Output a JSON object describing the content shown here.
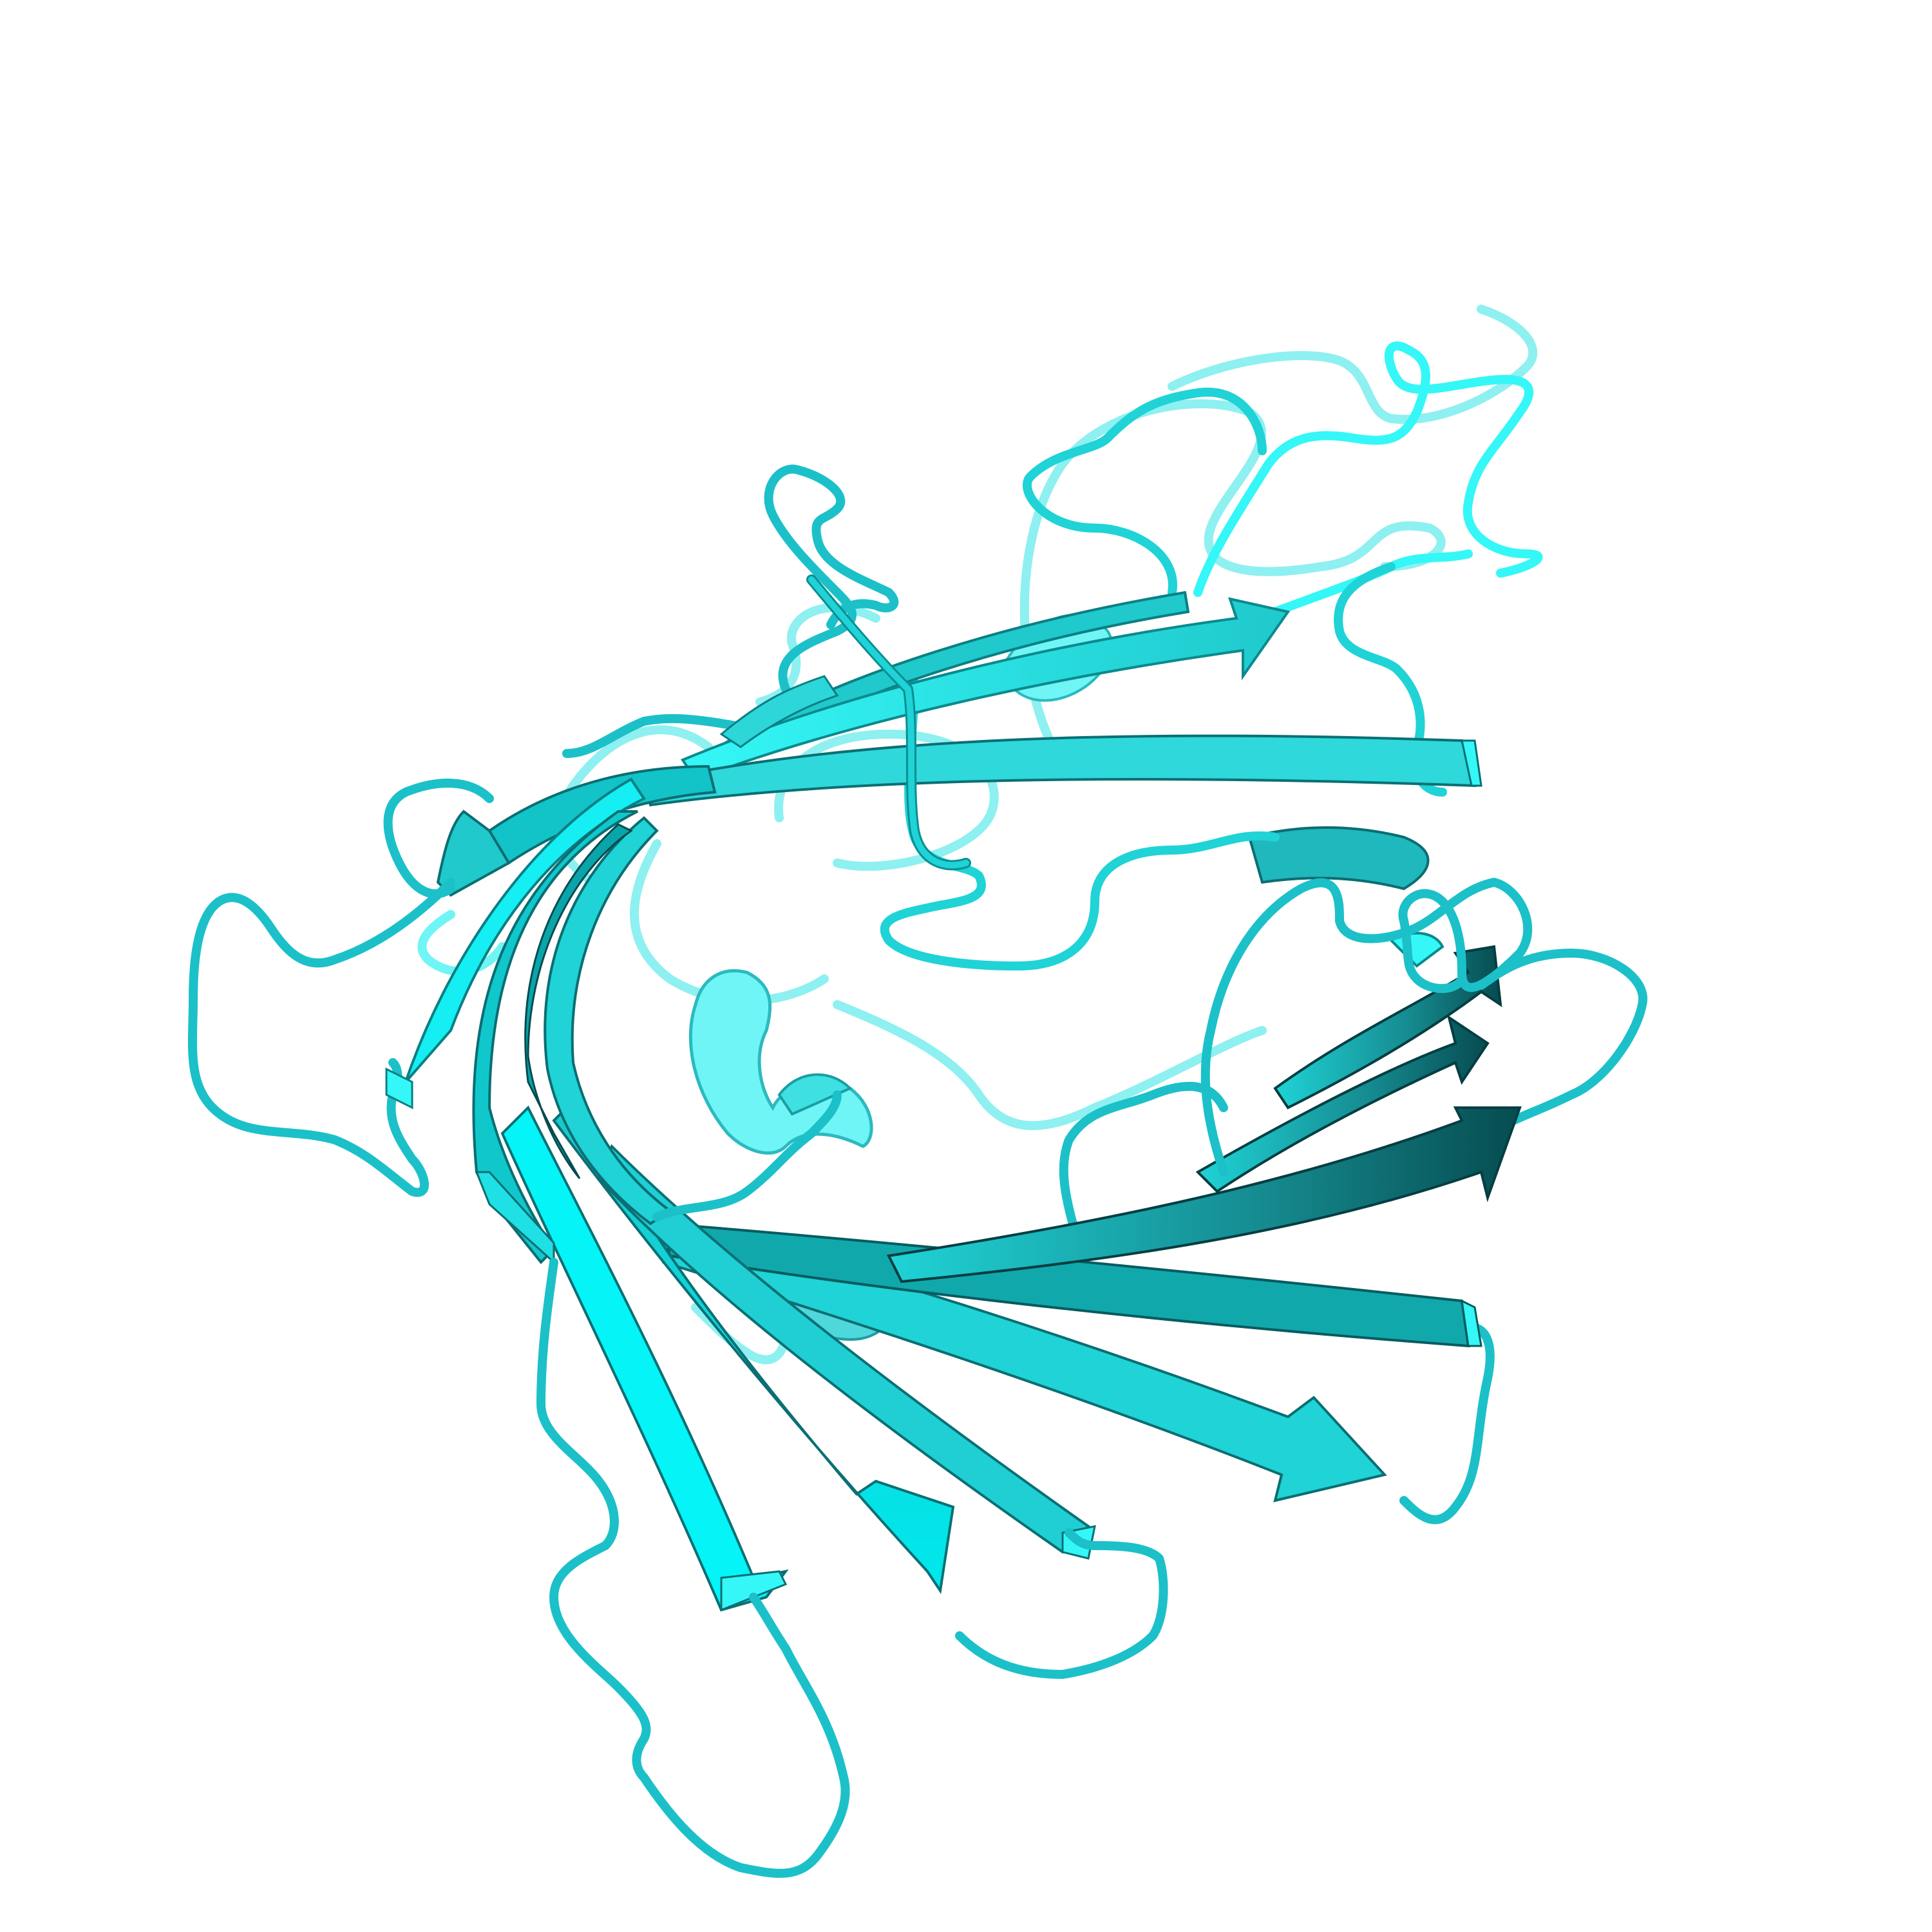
{
  "scene": {
    "background": "#ffffff",
    "representation": "cartoon",
    "colors": {
      "main": "#1fd3d6",
      "bright": "#35f7f7",
      "mid": "#22b5b8",
      "dark": "#0a6e72",
      "deep": "#064c50",
      "loop_front": "#1cc0c8",
      "loop_back": "#8ef0f0",
      "helix": "#6ff5f5"
    }
  }
}
